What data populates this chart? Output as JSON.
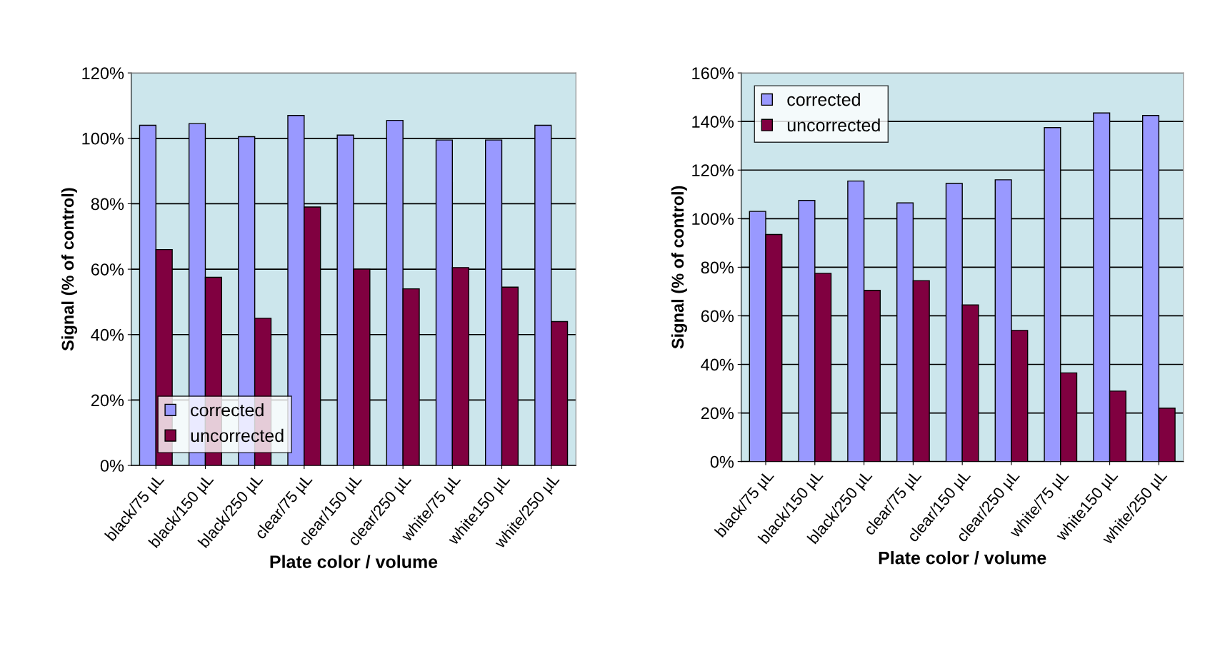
{
  "chart_data": [
    {
      "type": "bar",
      "xlabel": "Plate color / volume",
      "ylabel": "Signal (% of control)",
      "categories": [
        "black/75 µL",
        "black/150 µL",
        "black/250 µL",
        "clear/75 µL",
        "clear/150 µL",
        "clear/250 µL",
        "white/75 µL",
        "white150 µL",
        "white/250 µL"
      ],
      "series": [
        {
          "name": "corrected",
          "color": "#9999ff",
          "values": [
            104,
            104.5,
            100.5,
            107,
            101,
            105.5,
            99.5,
            99.5,
            104
          ]
        },
        {
          "name": "uncorrected",
          "color": "#800040",
          "values": [
            66,
            57.5,
            45,
            79,
            60,
            54,
            60.5,
            54.5,
            44
          ]
        }
      ],
      "ylim": [
        0,
        120
      ],
      "yticks": [
        {
          "value": 0,
          "label": "0%"
        },
        {
          "value": 20,
          "label": "20%"
        },
        {
          "value": 40,
          "label": "40%"
        },
        {
          "value": 60,
          "label": "60%"
        },
        {
          "value": 80,
          "label": "80%"
        },
        {
          "value": 100,
          "label": "100%"
        },
        {
          "value": 120,
          "label": "120%"
        }
      ],
      "grid": "y",
      "legend": "bottom left"
    },
    {
      "type": "bar",
      "xlabel": "Plate color / volume",
      "ylabel": "Signal (% of control)",
      "categories": [
        "black/75 µL",
        "black/150 µL",
        "black/250 µL",
        "clear/75 µL",
        "clear/150 µL",
        "clear/250 µL",
        "white/75 µL",
        "white150 µL",
        "white/250 µL"
      ],
      "series": [
        {
          "name": "corrected",
          "color": "#9999ff",
          "values": [
            103,
            107.5,
            115.5,
            106.5,
            114.5,
            116,
            137.5,
            143.5,
            142.5
          ]
        },
        {
          "name": "uncorrected",
          "color": "#800040",
          "values": [
            93.5,
            77.5,
            70.5,
            74.5,
            64.5,
            54,
            36.5,
            29,
            22
          ]
        }
      ],
      "ylim": [
        0,
        160
      ],
      "yticks": [
        {
          "value": 0,
          "label": "0%"
        },
        {
          "value": 20,
          "label": "20%"
        },
        {
          "value": 40,
          "label": "40%"
        },
        {
          "value": 60,
          "label": "60%"
        },
        {
          "value": 80,
          "label": "80%"
        },
        {
          "value": 100,
          "label": "100%"
        },
        {
          "value": 120,
          "label": "120%"
        },
        {
          "value": 140,
          "label": "140%"
        },
        {
          "value": 160,
          "label": "160%"
        }
      ],
      "grid": "y",
      "legend": "top left"
    }
  ]
}
